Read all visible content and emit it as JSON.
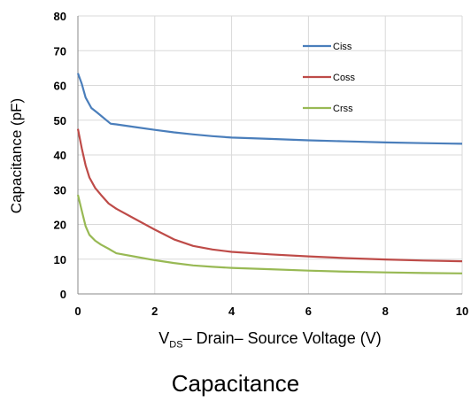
{
  "chart_data": {
    "type": "line",
    "title": "",
    "caption": "Capacitance",
    "xlabel_main": "V",
    "xlabel_sub": "DS",
    "xlabel_rest": "– Drain– Source Voltage (V)",
    "ylabel": "Capacitance (pF)",
    "xlim": [
      0,
      10
    ],
    "ylim": [
      0,
      80
    ],
    "xticks": [
      "0",
      "2",
      "4",
      "6",
      "8",
      "10"
    ],
    "yticks": [
      "0",
      "10",
      "20",
      "30",
      "40",
      "50",
      "60",
      "70",
      "80"
    ],
    "grid": true,
    "legend_position": "top-right",
    "series": [
      {
        "name": "Ciss",
        "color": "#4a7ebb",
        "x": [
          0,
          0.1,
          0.2,
          0.35,
          0.5,
          0.85,
          1.0,
          1.5,
          2,
          2.5,
          3,
          3.5,
          4,
          5,
          6,
          7,
          8,
          9,
          10
        ],
        "y": [
          63.5,
          60.5,
          56.5,
          53.5,
          52.2,
          49.0,
          48.8,
          48.0,
          47.2,
          46.5,
          45.9,
          45.4,
          45.0,
          44.6,
          44.2,
          43.9,
          43.6,
          43.4,
          43.2
        ]
      },
      {
        "name": "Coss",
        "color": "#be4b48",
        "x": [
          0,
          0.1,
          0.2,
          0.3,
          0.45,
          0.6,
          0.8,
          1.0,
          1.5,
          2,
          2.5,
          3,
          3.5,
          4,
          5,
          6,
          7,
          8,
          9,
          10
        ],
        "y": [
          47.5,
          42.0,
          37.0,
          33.5,
          30.5,
          28.5,
          26.0,
          24.5,
          21.5,
          18.5,
          15.7,
          13.8,
          12.8,
          12.1,
          11.4,
          10.8,
          10.3,
          9.9,
          9.6,
          9.4
        ]
      },
      {
        "name": "Crss",
        "color": "#98b954",
        "x": [
          0,
          0.1,
          0.2,
          0.3,
          0.45,
          0.6,
          0.8,
          1.0,
          1.5,
          2,
          2.5,
          3,
          3.5,
          4,
          5,
          6,
          7,
          8,
          9,
          10
        ],
        "y": [
          28.5,
          24.0,
          19.5,
          17.0,
          15.3,
          14.2,
          13.0,
          11.7,
          10.7,
          9.7,
          8.9,
          8.2,
          7.8,
          7.5,
          7.1,
          6.7,
          6.4,
          6.2,
          6.0,
          5.9
        ]
      }
    ]
  }
}
